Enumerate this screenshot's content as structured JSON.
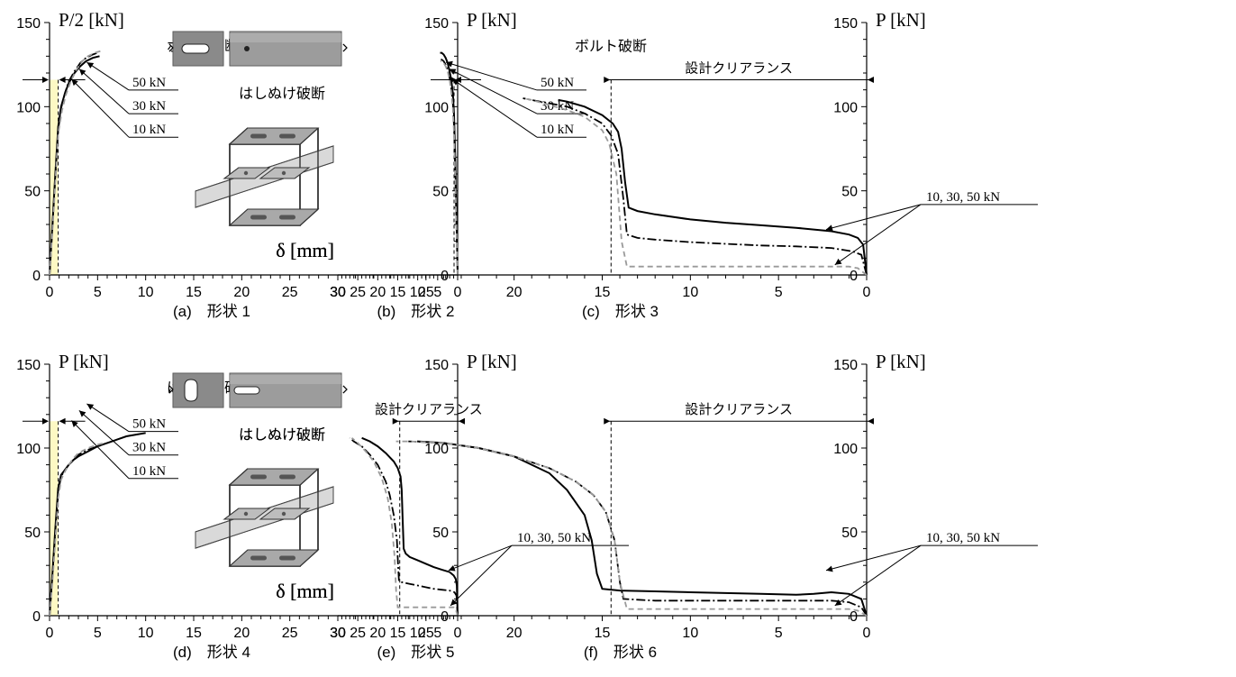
{
  "figure": {
    "tick_values_x": [
      0,
      5,
      10,
      15,
      20,
      25,
      30
    ],
    "tick_values_y": [
      0,
      50,
      100,
      150
    ],
    "x_unit_label": "δ [mm]",
    "colors": {
      "highlight": "#fdf9c4",
      "series_50": "#000000",
      "series_30": "#000000",
      "series_10": "#9a9a9a"
    }
  },
  "chart_data": [
    {
      "type": "line",
      "panel": "a",
      "caption": "(a)　形状 1",
      "ylabel": "P/2 [kN]",
      "xlabel": "δ [mm]",
      "xlim": [
        0,
        30
      ],
      "ylim": [
        0,
        150
      ],
      "clearance": 0.9,
      "annotation": "ボルト破断",
      "load_labels": [
        "50 kN",
        "30 kN",
        "10 kN"
      ],
      "photo": "two-hole",
      "series": [
        {
          "name": "50 kN",
          "style": "solid",
          "x": [
            0,
            0.3,
            0.6,
            0.9,
            1.2,
            1.6,
            2.0,
            2.6,
            3.2,
            3.8,
            4.5,
            5.2
          ],
          "y": [
            0,
            30,
            60,
            88,
            100,
            108,
            114,
            120,
            124,
            127,
            129,
            130
          ]
        },
        {
          "name": "30 kN",
          "style": "dashdot",
          "x": [
            0,
            0.3,
            0.6,
            0.9,
            1.2,
            1.6,
            2.0,
            2.6,
            3.2,
            3.8,
            4.5,
            5.0
          ],
          "y": [
            0,
            28,
            58,
            86,
            99,
            108,
            115,
            121,
            126,
            129,
            131,
            132
          ]
        },
        {
          "name": "10 kN",
          "style": "dashed",
          "x": [
            0,
            0.3,
            0.6,
            0.9,
            1.3,
            1.7,
            2.2,
            2.8,
            3.4,
            4.0,
            4.7,
            5.3
          ],
          "y": [
            0,
            26,
            55,
            84,
            98,
            107,
            115,
            122,
            127,
            130,
            132,
            133
          ]
        }
      ]
    },
    {
      "type": "line",
      "panel": "b",
      "caption": "(b)　形状 2",
      "ylabel": "P [kN]",
      "xlabel": "δ [mm]",
      "xlim": [
        0,
        30
      ],
      "ylim": [
        0,
        150
      ],
      "clearance": 0.9,
      "annotation": "ボルト破断",
      "load_labels": [
        "50 kN",
        "30 kN",
        "10 kN"
      ],
      "photo": "one-hole",
      "series": [
        {
          "name": "50 kN",
          "style": "solid",
          "x": [
            0,
            0.3,
            0.6,
            0.9,
            1.2,
            1.6,
            2.0,
            2.5,
            3.0,
            3.5,
            4.0,
            4.4
          ],
          "y": [
            0,
            35,
            70,
            95,
            108,
            116,
            121,
            126,
            129,
            131,
            132,
            132
          ]
        },
        {
          "name": "30 kN",
          "style": "dashdot",
          "x": [
            0,
            0.3,
            0.6,
            0.9,
            1.2,
            1.6,
            2.0,
            2.5,
            3.0,
            3.5,
            4.0,
            4.2
          ],
          "y": [
            0,
            30,
            62,
            88,
            102,
            111,
            117,
            122,
            125,
            127,
            128,
            128
          ]
        },
        {
          "name": "10 kN",
          "style": "dashed",
          "x": [
            0,
            0.3,
            0.6,
            0.9,
            1.2,
            1.6,
            2.0,
            2.5,
            3.0,
            3.5,
            4.0,
            4.3
          ],
          "y": [
            0,
            28,
            58,
            84,
            99,
            109,
            116,
            121,
            124,
            126,
            127,
            127
          ]
        }
      ]
    },
    {
      "type": "line",
      "panel": "c",
      "caption": "(c)　形状 3",
      "ylabel": "P [kN]",
      "xlabel": "δ [mm]",
      "xlim": [
        0,
        30
      ],
      "ylim": [
        0,
        150
      ],
      "clearance": 14.5,
      "clearance_label": "設計クリアランス",
      "annotation": "はしぬけ破断",
      "load_labels": [
        "10, 30, 50 kN"
      ],
      "photo": "slot",
      "series": [
        {
          "name": "50 kN",
          "style": "solid",
          "x": [
            0,
            0.2,
            0.5,
            1.0,
            2.0,
            4.0,
            6.0,
            8.0,
            10.0,
            12.0,
            13.0,
            13.5,
            13.7,
            13.9,
            14.1,
            14.4,
            15.0,
            16.0,
            17.0,
            17.5
          ],
          "y": [
            0,
            18,
            22,
            24,
            26,
            28,
            29.5,
            31,
            33,
            36,
            38,
            40,
            55,
            75,
            85,
            90,
            95,
            100,
            103,
            104
          ]
        },
        {
          "name": "30 kN",
          "style": "dashdot",
          "x": [
            0,
            0.3,
            0.8,
            2.0,
            4.0,
            6.0,
            8.0,
            10.0,
            12.0,
            13.0,
            13.6,
            13.8,
            14.1,
            14.5,
            15.0,
            16.0,
            17.0,
            18.0,
            19.0,
            19.5
          ],
          "y": [
            0,
            12,
            14,
            16,
            17,
            17.5,
            18.5,
            19.5,
            21,
            22,
            24,
            45,
            72,
            83,
            90,
            96,
            100,
            102,
            104,
            105
          ]
        },
        {
          "name": "10 kN",
          "style": "dashed",
          "x": [
            0,
            0.5,
            1.0,
            2.0,
            4.0,
            6.0,
            8.0,
            10.0,
            12.0,
            13.0,
            13.6,
            13.9,
            14.2,
            14.6,
            15.0,
            16.0,
            17.0,
            18.0,
            19.0,
            19.5
          ],
          "y": [
            0,
            4,
            5,
            5,
            5,
            5,
            5,
            5,
            5,
            5,
            5,
            20,
            60,
            78,
            86,
            94,
            98,
            101,
            104,
            105
          ]
        }
      ]
    },
    {
      "type": "line",
      "panel": "d",
      "caption": "(d)　形状 4",
      "ylabel": "P [kN]",
      "xlabel": "δ [mm]",
      "xlim": [
        0,
        30
      ],
      "ylim": [
        0,
        150
      ],
      "clearance": 0.9,
      "annotation": "はしぬけ破断",
      "load_labels": [
        "50 kN",
        "30 kN",
        "10 kN"
      ],
      "photo": "irregular-hole",
      "series": [
        {
          "name": "50 kN",
          "style": "solid",
          "x": [
            0,
            0.3,
            0.6,
            0.9,
            1.2,
            1.6,
            2.0,
            2.5,
            3.0,
            4.0,
            5.0,
            6.0,
            7.0,
            8.0,
            9.0,
            10.0
          ],
          "y": [
            0,
            25,
            52,
            76,
            84,
            87,
            90,
            93,
            95,
            98,
            101,
            103,
            105,
            107,
            108,
            109
          ]
        },
        {
          "name": "30 kN",
          "style": "dashdot",
          "x": [
            0,
            0.3,
            0.6,
            0.9,
            1.2,
            1.6,
            2.0,
            2.5,
            3.0,
            4.0,
            5.0,
            5.6
          ],
          "y": [
            0,
            24,
            50,
            74,
            83,
            87,
            90,
            93,
            96,
            99,
            101,
            102
          ]
        },
        {
          "name": "10 kN",
          "style": "dashed",
          "x": [
            0,
            0.3,
            0.6,
            0.9,
            1.2,
            1.6,
            2.0,
            2.5,
            3.0,
            4.0,
            5.0,
            5.7
          ],
          "y": [
            0,
            20,
            45,
            70,
            81,
            86,
            90,
            94,
            97,
            100,
            102,
            103
          ]
        }
      ]
    },
    {
      "type": "line",
      "panel": "e",
      "caption": "(e)　形状 5",
      "ylabel": "P [kN]",
      "xlabel": "δ [mm]",
      "xlim": [
        0,
        30
      ],
      "ylim": [
        0,
        150
      ],
      "clearance": 14.5,
      "clearance_label": "設計クリアランス",
      "annotation": "はしぬけ破断",
      "load_labels": [
        "10, 30, 50 kN"
      ],
      "photo": "slot-fractured",
      "series": [
        {
          "name": "50 kN",
          "style": "solid",
          "x": [
            0,
            0.2,
            0.5,
            1.0,
            2.0,
            4.0,
            6.0,
            8.0,
            10.0,
            12.0,
            13.0,
            13.5,
            13.8,
            14.0,
            14.3,
            15.0,
            16.0,
            18.0,
            20.0,
            22.0,
            24.0
          ],
          "y": [
            0,
            18,
            22,
            24,
            26,
            27.5,
            29,
            31,
            33,
            35,
            37,
            40,
            60,
            75,
            83,
            88,
            92,
            97,
            101,
            104,
            106
          ]
        },
        {
          "name": "30 kN",
          "style": "dashdot",
          "x": [
            0,
            0.3,
            0.8,
            2.0,
            4.0,
            6.0,
            8.0,
            10.0,
            12.0,
            14.0,
            14.7,
            14.9,
            15.2,
            16.0,
            17.0,
            18.0,
            20.0,
            22.0,
            24.0,
            26.0,
            27.0
          ],
          "y": [
            0,
            12,
            14,
            15,
            15.5,
            16,
            17,
            18,
            19,
            20,
            21,
            30,
            45,
            60,
            72,
            80,
            90,
            96,
            101,
            104,
            106
          ]
        },
        {
          "name": "10 kN",
          "style": "dashed",
          "x": [
            0,
            0.5,
            1.0,
            2.0,
            4.0,
            6.0,
            8.0,
            10.0,
            12.0,
            14.0,
            15.0,
            15.4,
            15.8,
            16.5,
            17.5,
            19.0,
            21.0,
            23.0,
            25.0,
            26.5
          ],
          "y": [
            0,
            4,
            5,
            5,
            5,
            5,
            5,
            5,
            5,
            5,
            5,
            15,
            35,
            55,
            70,
            82,
            92,
            98,
            103,
            106
          ]
        }
      ]
    },
    {
      "type": "line",
      "panel": "f",
      "caption": "(f)　形状 6",
      "ylabel": "P [kN]",
      "xlabel": "δ [mm]",
      "xlim": [
        0,
        30
      ],
      "ylim": [
        0,
        150
      ],
      "clearance": 14.5,
      "clearance_label": "設計クリアランス",
      "annotation": "はしぬけ破断",
      "load_labels": [
        "10, 30, 50 kN"
      ],
      "photo": "keyhole",
      "series": [
        {
          "name": "50 kN",
          "style": "solid",
          "x": [
            0,
            0.3,
            1.0,
            2.0,
            3.0,
            4.0,
            6.0,
            8.0,
            10.0,
            12.0,
            14.0,
            15.0,
            15.3,
            15.6,
            16.0,
            17.0,
            18.0,
            20.0,
            22.0,
            24.0,
            25.5
          ],
          "y": [
            0,
            10,
            13,
            14,
            13,
            12.5,
            13,
            13.5,
            14,
            14.5,
            15,
            16,
            25,
            45,
            60,
            75,
            85,
            95,
            100,
            103,
            104
          ]
        },
        {
          "name": "30 kN",
          "style": "dashdot",
          "x": [
            0,
            0.3,
            1.0,
            2.0,
            4.0,
            6.0,
            8.0,
            10.0,
            12.0,
            13.8,
            14.0,
            14.3,
            14.8,
            15.5,
            16.5,
            18.0,
            20.0,
            22.0,
            24.0,
            26.0
          ],
          "y": [
            0,
            5,
            8,
            9,
            9,
            9,
            9,
            9,
            9,
            10,
            20,
            45,
            62,
            72,
            80,
            88,
            95,
            100,
            103,
            104
          ]
        },
        {
          "name": "10 kN",
          "style": "dashed",
          "x": [
            0,
            0.5,
            1.0,
            3.0,
            6.0,
            9.0,
            12.0,
            13.6,
            14.0,
            14.3,
            14.8,
            15.5,
            16.5,
            18.0,
            20.0,
            22.0,
            24.0,
            26.0,
            26.7
          ],
          "y": [
            0,
            3,
            4,
            4,
            4,
            4,
            4,
            4,
            20,
            45,
            62,
            72,
            80,
            88,
            95,
            100,
            103,
            104,
            104
          ]
        }
      ]
    }
  ]
}
